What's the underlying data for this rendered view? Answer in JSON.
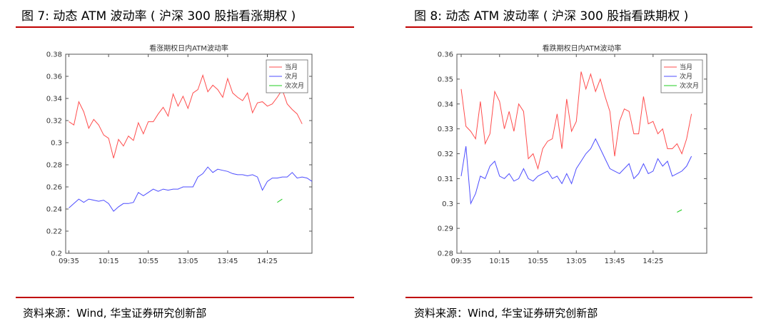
{
  "left": {
    "figure_title": "图 7: 动态 ATM 波动率 ( 沪深 300 股指看涨期权 )",
    "source": "资料来源：Wind, 华宝证券研究创新部"
  },
  "right": {
    "figure_title": "图 8: 动态 ATM 波动率 ( 沪深 300 股指看跌期权 )",
    "source": "资料来源：Wind, 华宝证券研究创新部"
  },
  "colors": {
    "rule": "#c00000",
    "series": [
      "#ff4d4d",
      "#4d4dff",
      "#22cc22"
    ]
  },
  "chart_data": [
    {
      "type": "line",
      "title": "看涨期权日内ATM波动率",
      "xlabel": "",
      "ylabel": "",
      "x_ticks": [
        "09:35",
        "10:15",
        "10:55",
        "13:05",
        "13:45",
        "14:25"
      ],
      "x_tick_index": [
        0,
        8,
        16,
        24,
        32,
        40
      ],
      "ylim": [
        0.2,
        0.38
      ],
      "y_ticks": [
        "0.2",
        "0.22",
        "0.24",
        "0.26",
        "0.28",
        "0.3",
        "0.32",
        "0.34",
        "0.36",
        "0.38"
      ],
      "grid": false,
      "legend": "top-right",
      "series": [
        {
          "name": "当月",
          "values": [
            0.319,
            0.316,
            0.337,
            0.328,
            0.313,
            0.321,
            0.316,
            0.307,
            0.304,
            0.286,
            0.303,
            0.297,
            0.306,
            0.302,
            0.318,
            0.308,
            0.319,
            0.319,
            0.326,
            0.332,
            0.324,
            0.344,
            0.333,
            0.342,
            0.331,
            0.345,
            0.348,
            0.361,
            0.346,
            0.352,
            0.348,
            0.341,
            0.358,
            0.345,
            0.341,
            0.338,
            0.345,
            0.327,
            0.336,
            0.337,
            0.333,
            0.335,
            0.341,
            0.348,
            0.335,
            0.33,
            0.326,
            0.317
          ]
        },
        {
          "name": "次月",
          "values": [
            0.241,
            0.245,
            0.249,
            0.246,
            0.249,
            0.248,
            0.247,
            0.248,
            0.245,
            0.238,
            0.242,
            0.245,
            0.245,
            0.246,
            0.255,
            0.252,
            0.255,
            0.258,
            0.256,
            0.258,
            0.257,
            0.258,
            0.258,
            0.26,
            0.26,
            0.26,
            0.269,
            0.272,
            0.278,
            0.273,
            0.276,
            0.275,
            0.274,
            0.272,
            0.271,
            0.271,
            0.27,
            0.271,
            0.269,
            0.257,
            0.265,
            0.268,
            0.268,
            0.269,
            0.269,
            0.273,
            0.268,
            0.269,
            0.268,
            0.265
          ]
        },
        {
          "name": "次次月",
          "start": 42,
          "values": [
            0.246,
            0.249
          ]
        }
      ]
    },
    {
      "type": "line",
      "title": "看跌期权日内ATM波动率",
      "xlabel": "",
      "ylabel": "",
      "x_ticks": [
        "09:35",
        "10:15",
        "10:55",
        "13:05",
        "13:45",
        "14:25"
      ],
      "x_tick_index": [
        0,
        8,
        16,
        24,
        32,
        40
      ],
      "ylim": [
        0.28,
        0.36
      ],
      "y_ticks": [
        "0.28",
        "0.29",
        "0.3",
        "0.31",
        "0.32",
        "0.33",
        "0.34",
        "0.35",
        "0.36"
      ],
      "grid": false,
      "legend": "top-right",
      "series": [
        {
          "name": "当月",
          "values": [
            0.346,
            0.331,
            0.329,
            0.326,
            0.341,
            0.324,
            0.328,
            0.345,
            0.341,
            0.33,
            0.337,
            0.329,
            0.34,
            0.337,
            0.318,
            0.32,
            0.314,
            0.322,
            0.325,
            0.326,
            0.336,
            0.322,
            0.342,
            0.329,
            0.333,
            0.353,
            0.346,
            0.352,
            0.345,
            0.35,
            0.343,
            0.337,
            0.319,
            0.333,
            0.338,
            0.337,
            0.328,
            0.328,
            0.343,
            0.332,
            0.333,
            0.328,
            0.33,
            0.322,
            0.322,
            0.324,
            0.32,
            0.326,
            0.336
          ]
        },
        {
          "name": "次月",
          "values": [
            0.311,
            0.323,
            0.3,
            0.304,
            0.311,
            0.31,
            0.315,
            0.317,
            0.311,
            0.31,
            0.312,
            0.309,
            0.31,
            0.314,
            0.31,
            0.309,
            0.311,
            0.312,
            0.313,
            0.31,
            0.311,
            0.308,
            0.312,
            0.308,
            0.314,
            0.317,
            0.32,
            0.322,
            0.326,
            0.322,
            0.318,
            0.314,
            0.313,
            0.312,
            0.314,
            0.316,
            0.31,
            0.312,
            0.316,
            0.312,
            0.313,
            0.318,
            0.315,
            0.317,
            0.311,
            0.312,
            0.313,
            0.315,
            0.319
          ]
        },
        {
          "name": "次次月",
          "start": 45,
          "values": [
            0.2965,
            0.2975
          ]
        }
      ]
    }
  ]
}
